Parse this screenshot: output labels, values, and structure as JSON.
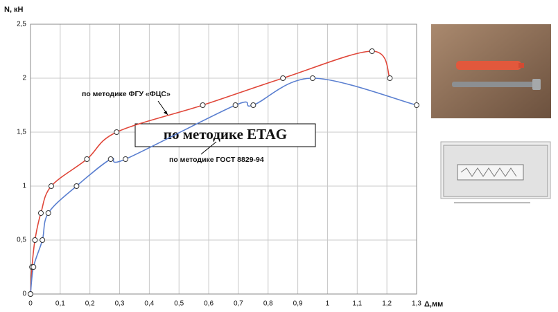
{
  "chart_data": {
    "type": "line",
    "y_label": "N, кН",
    "x_label": "Δ,мм",
    "annotations": [
      "по методике ETAG"
    ],
    "xlim": [
      0,
      1.3
    ],
    "ylim": [
      0,
      2.5
    ],
    "xticks": [
      0,
      {
        "value": 0.1,
        "label": "0,1"
      },
      {
        "value": 0.2,
        "label": "0,2"
      },
      {
        "value": 0.3,
        "label": "0,3"
      },
      {
        "value": 0.4,
        "label": "0,4"
      },
      {
        "value": 0.5,
        "label": "0,5"
      },
      {
        "value": 0.6,
        "label": "0,6"
      },
      {
        "value": 0.7,
        "label": "0,7"
      },
      {
        "value": 0.8,
        "label": "0,8"
      },
      {
        "value": 0.9,
        "label": "0,9"
      },
      1,
      {
        "value": 1.1,
        "label": "1,1"
      },
      {
        "value": 1.2,
        "label": "1,2"
      },
      {
        "value": 1.3,
        "label": "1,3"
      }
    ],
    "yticks": [
      0,
      {
        "value": 0.5,
        "label": "0,5"
      },
      1,
      {
        "value": 1.5,
        "label": "1,5"
      },
      2,
      {
        "value": 2.5,
        "label": "2,5"
      }
    ],
    "grid": true,
    "series": [
      {
        "name": "по методике ФГУ «ФЦС»",
        "color": "#e0473a",
        "x": [
          0,
          0.005,
          0.015,
          0.035,
          0.07,
          0.19,
          0.29,
          0.58,
          0.85,
          1.15,
          1.21
        ],
        "values": [
          0,
          0.25,
          0.5,
          0.75,
          1.0,
          1.25,
          1.5,
          1.75,
          2.0,
          2.25,
          2.0
        ]
      },
      {
        "name": "по методике ГОСТ 8829-94",
        "color": "#5a7fd0",
        "x": [
          0,
          0.01,
          0.04,
          0.06,
          0.155,
          0.27,
          0.32,
          0.69,
          0.75,
          0.95,
          1.3
        ],
        "values": [
          0,
          0.25,
          0.5,
          0.75,
          1.0,
          1.25,
          1.25,
          1.75,
          1.75,
          2.0,
          1.75
        ]
      }
    ]
  }
}
